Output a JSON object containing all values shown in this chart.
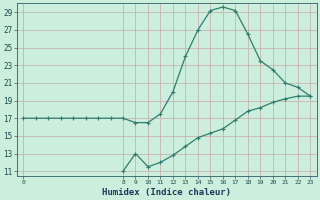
{
  "xlabel": "Humidex (Indice chaleur)",
  "bg_color": "#cceedd",
  "line_color": "#2e7d6e",
  "xlim": [
    -0.5,
    23.5
  ],
  "ylim": [
    10.5,
    30
  ],
  "yticks": [
    11,
    13,
    15,
    17,
    19,
    21,
    23,
    25,
    27,
    29
  ],
  "xticks": [
    0,
    8,
    9,
    10,
    11,
    12,
    13,
    14,
    15,
    16,
    17,
    18,
    19,
    20,
    21,
    22,
    23
  ],
  "line1_x": [
    0,
    1,
    2,
    3,
    4,
    5,
    6,
    7,
    8,
    9,
    10,
    11,
    12,
    13,
    14,
    15,
    16,
    17,
    18,
    19,
    20,
    21,
    22,
    23
  ],
  "line1_y": [
    17,
    17,
    17,
    17,
    17,
    17,
    17,
    17,
    17,
    16.5,
    16.5,
    17.5,
    20,
    24,
    27,
    29.2,
    29.6,
    29.2,
    26.5,
    23.5,
    22.5,
    21.0,
    20.5,
    19.5
  ],
  "line2_x": [
    8,
    9,
    10,
    11,
    12,
    13,
    14,
    15,
    16,
    17,
    18,
    19,
    20,
    21,
    22,
    23
  ],
  "line2_y": [
    11,
    13,
    11.5,
    12.0,
    12.8,
    13.8,
    14.8,
    15.3,
    15.8,
    16.8,
    17.8,
    18.2,
    18.8,
    19.2,
    19.5,
    19.5
  ]
}
